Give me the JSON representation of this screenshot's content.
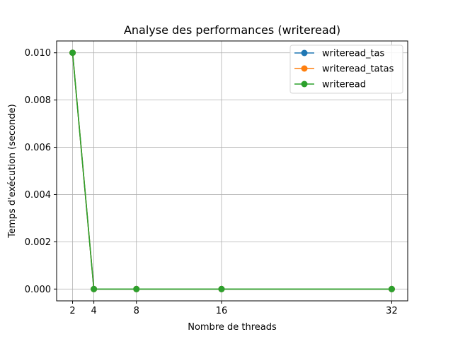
{
  "chart_data": {
    "type": "line",
    "title": "Analyse des performances (writeread)",
    "xlabel": "Nombre de threads",
    "ylabel": "Temps d'exécution (seconde)",
    "x": [
      2,
      4,
      8,
      16,
      32
    ],
    "xticks": [
      2,
      4,
      8,
      16,
      32
    ],
    "xlim": [
      0.5,
      33.5
    ],
    "yticks": [
      0.0,
      0.002,
      0.004,
      0.006,
      0.008,
      0.01
    ],
    "ytick_labels": [
      "0.000",
      "0.002",
      "0.004",
      "0.006",
      "0.008",
      "0.010"
    ],
    "ylim": [
      -0.0005,
      0.0105
    ],
    "grid": true,
    "legend_position": "top-right",
    "series": [
      {
        "name": "writeread_tas",
        "color": "#1f77b4",
        "marker": "circle",
        "values": [
          0.01,
          0.0,
          0.0,
          0.0,
          0.0
        ]
      },
      {
        "name": "writeread_tatas",
        "color": "#ff7f0e",
        "marker": "circle",
        "values": [
          0.01,
          0.0,
          0.0,
          0.0,
          0.0
        ]
      },
      {
        "name": "writeread",
        "color": "#2ca02c",
        "marker": "circle",
        "values": [
          0.01,
          0.0,
          0.0,
          0.0,
          0.0
        ]
      }
    ]
  }
}
